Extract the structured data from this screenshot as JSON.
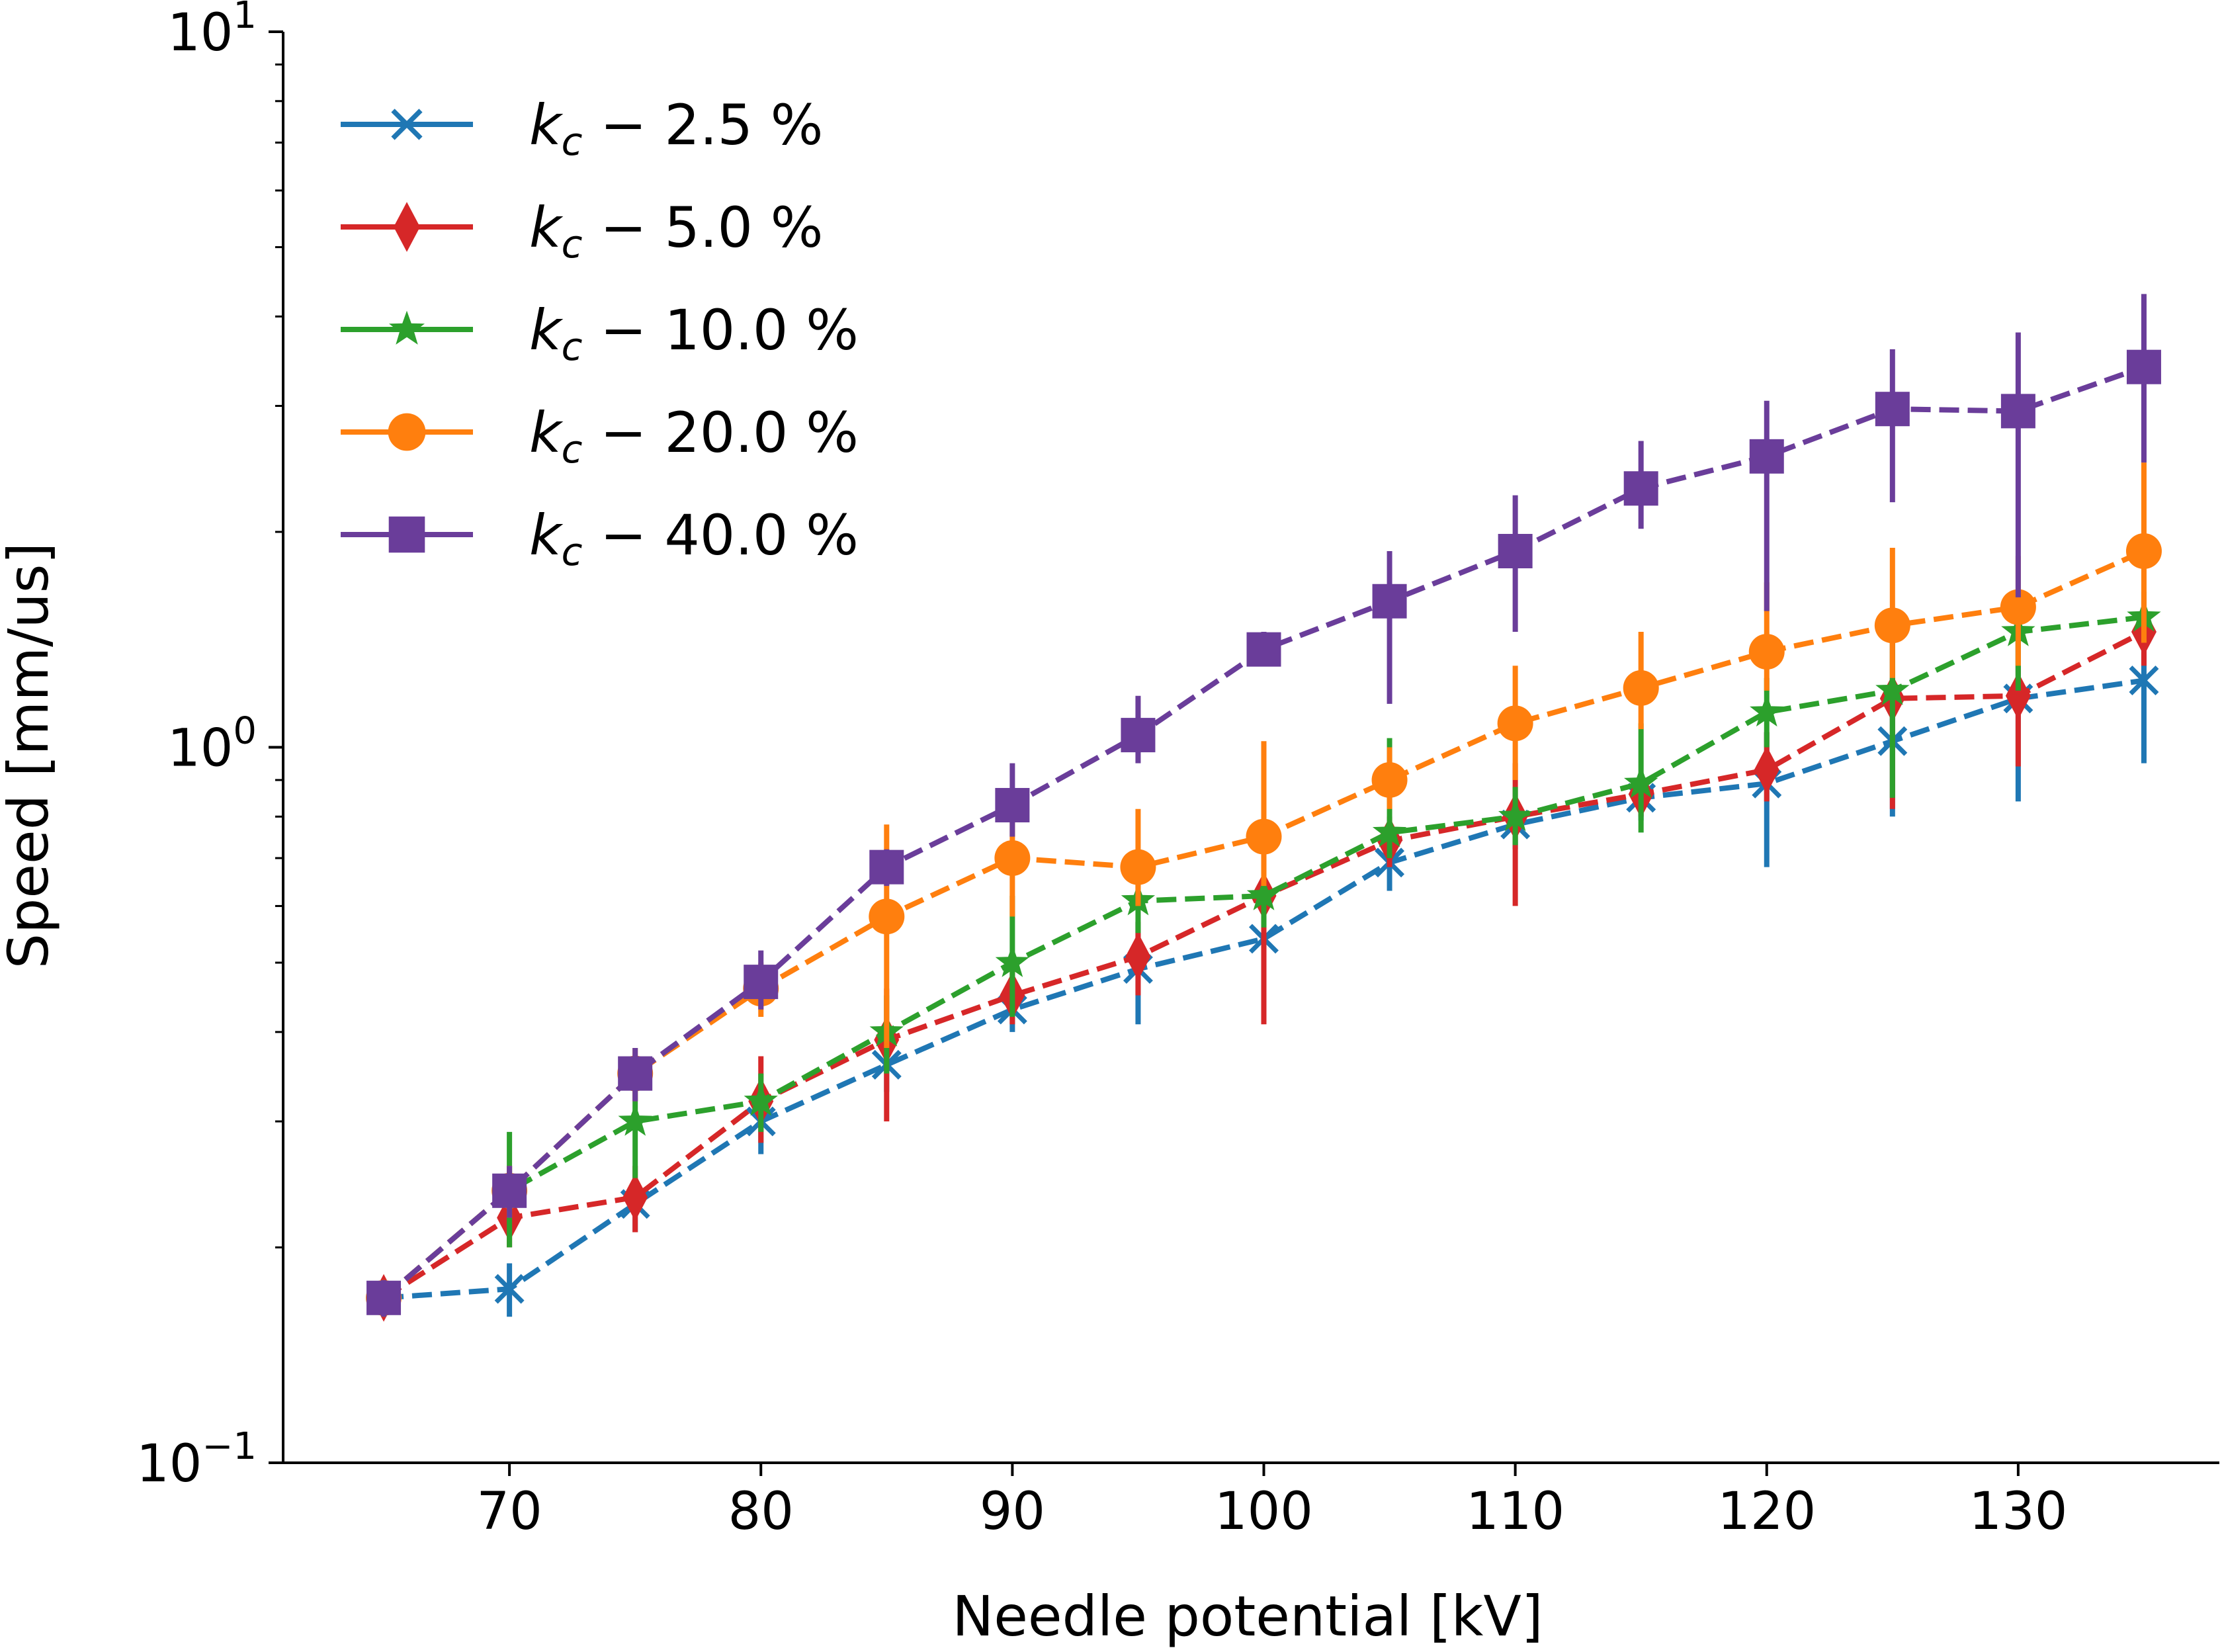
{
  "chart_data": {
    "type": "line",
    "xlabel": "Needle potential [kV]",
    "ylabel": "Speed [mm/us]",
    "yscale": "log",
    "xlim": [
      61,
      138
    ],
    "ylim": [
      0.1,
      10
    ],
    "x_ticks": [
      70,
      80,
      90,
      100,
      110,
      120,
      130
    ],
    "x_tick_labels": [
      "70",
      "80",
      "90",
      "100",
      "110",
      "120",
      "130"
    ],
    "y_ticks": [
      {
        "value": 0.1,
        "base": "10",
        "exp": "−1"
      },
      {
        "value": 1,
        "base": "10",
        "exp": "0"
      },
      {
        "value": 10,
        "base": "10",
        "exp": "1"
      }
    ],
    "legend_position": "upper-left",
    "x": [
      65,
      70,
      75,
      80,
      85,
      90,
      95,
      100,
      105,
      110,
      115,
      120,
      125,
      130,
      135
    ],
    "series": [
      {
        "name_var": "k",
        "name_sub": "c",
        "name_rest": " − 2.5 %",
        "color": "#1f77b4",
        "marker": "x",
        "values": [
          0.17,
          0.175,
          0.23,
          0.3,
          0.36,
          0.43,
          0.49,
          0.54,
          0.69,
          0.78,
          0.85,
          0.89,
          1.02,
          1.17,
          1.24
        ],
        "err_low": [
          0.16,
          0.16,
          0.21,
          0.27,
          0.33,
          0.4,
          0.41,
          0.46,
          0.63,
          0.72,
          0.79,
          0.68,
          0.8,
          0.84,
          0.95
        ],
        "err_high": [
          0.18,
          0.19,
          0.25,
          0.33,
          0.39,
          0.46,
          0.57,
          0.63,
          0.75,
          0.84,
          0.91,
          1.05,
          1.25,
          1.5,
          1.55
        ]
      },
      {
        "name_var": "k",
        "name_sub": "c",
        "name_rest": " − 5.0 %",
        "color": "#d62728",
        "marker": "diamond",
        "values": [
          0.17,
          0.22,
          0.235,
          0.32,
          0.39,
          0.45,
          0.51,
          0.62,
          0.74,
          0.8,
          0.86,
          0.93,
          1.17,
          1.18,
          1.45
        ],
        "err_low": [
          0.16,
          0.2,
          0.21,
          0.28,
          0.3,
          0.41,
          0.45,
          0.41,
          0.68,
          0.6,
          0.8,
          0.84,
          0.82,
          0.94,
          1.3
        ],
        "err_high": [
          0.18,
          0.24,
          0.26,
          0.37,
          0.46,
          0.49,
          0.57,
          0.72,
          0.8,
          0.95,
          0.92,
          1.05,
          1.4,
          1.42,
          1.6
        ]
      },
      {
        "name_var": "k",
        "name_sub": "c",
        "name_rest": " − 10.0 %",
        "color": "#2ca02c",
        "marker": "star",
        "values": [
          0.17,
          0.24,
          0.3,
          0.32,
          0.4,
          0.5,
          0.61,
          0.62,
          0.76,
          0.8,
          0.89,
          1.12,
          1.2,
          1.45,
          1.52
        ],
        "err_low": [
          0.16,
          0.2,
          0.25,
          0.29,
          0.35,
          0.42,
          0.55,
          0.56,
          0.7,
          0.73,
          0.76,
          1.0,
          0.85,
          1.2,
          1.4
        ],
        "err_high": [
          0.18,
          0.29,
          0.35,
          0.35,
          0.45,
          0.62,
          0.67,
          0.68,
          1.03,
          0.88,
          1.08,
          1.25,
          1.45,
          1.65,
          1.65
        ]
      },
      {
        "name_var": "k",
        "name_sub": "c",
        "name_rest": " − 20.0 %",
        "color": "#ff7f0e",
        "marker": "circle",
        "values": [
          0.17,
          0.24,
          0.35,
          0.46,
          0.58,
          0.7,
          0.68,
          0.75,
          0.9,
          1.08,
          1.21,
          1.36,
          1.48,
          1.57,
          1.88
        ],
        "err_low": [
          0.16,
          0.22,
          0.32,
          0.42,
          0.38,
          0.58,
          0.6,
          0.64,
          0.82,
          0.9,
          1.06,
          1.2,
          1.25,
          1.3,
          1.4
        ],
        "err_high": [
          0.18,
          0.26,
          0.38,
          0.5,
          0.78,
          0.8,
          0.82,
          1.02,
          1.0,
          1.3,
          1.45,
          1.7,
          1.9,
          1.85,
          2.5
        ]
      },
      {
        "name_var": "k",
        "name_sub": "c",
        "name_rest": " − 40.0 %",
        "color": "#6a3d9a",
        "marker": "square",
        "values": [
          0.17,
          0.24,
          0.35,
          0.47,
          0.68,
          0.83,
          1.04,
          1.37,
          1.6,
          1.88,
          2.3,
          2.55,
          2.97,
          2.95,
          3.4
        ],
        "err_low": [
          0.16,
          0.22,
          0.32,
          0.43,
          0.64,
          0.75,
          0.95,
          1.3,
          1.15,
          1.45,
          2.02,
          1.55,
          2.2,
          1.62,
          2.5
        ],
        "err_high": [
          0.18,
          0.26,
          0.38,
          0.52,
          0.72,
          0.95,
          1.18,
          1.45,
          1.88,
          2.25,
          2.68,
          3.05,
          3.6,
          3.8,
          4.3
        ]
      }
    ]
  }
}
